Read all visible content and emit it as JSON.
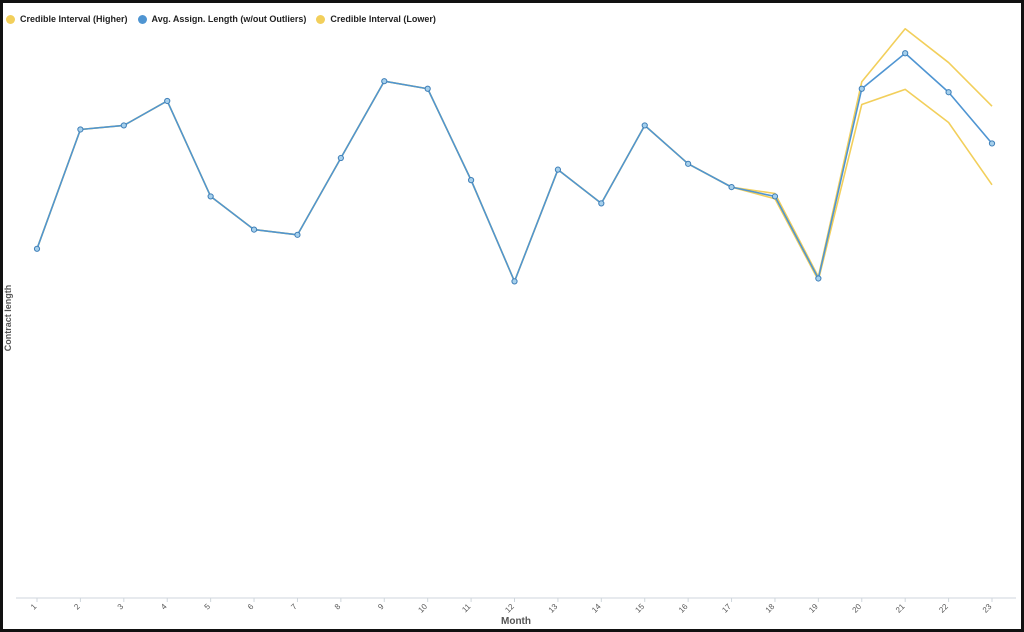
{
  "chart_data": {
    "type": "line",
    "title": "",
    "xlabel": "Month",
    "ylabel": "Contract length",
    "x": [
      "1",
      "2",
      "3",
      "4",
      "5",
      "6",
      "7",
      "8",
      "9",
      "10",
      "11",
      "12",
      "13",
      "14",
      "15",
      "16",
      "17",
      "18",
      "19",
      "20",
      "21",
      "22",
      "23"
    ],
    "ylim": [
      0,
      100
    ],
    "grid": false,
    "legend_position": "top-left",
    "series": [
      {
        "name": "Credible Interval (Higher)",
        "color": "#f2cf5b",
        "values": [
          60,
          80.5,
          81.2,
          85.4,
          69,
          63.3,
          62.4,
          75.6,
          88.8,
          87.5,
          71.8,
          54.4,
          73.6,
          67.8,
          81.2,
          74.6,
          70.6,
          69.5,
          55.2,
          88.7,
          97.8,
          92,
          84.5
        ]
      },
      {
        "name": "Avg. Assign. Length (w/out Outliers)",
        "color": "#4f95d2",
        "values": [
          60,
          80.5,
          81.2,
          85.4,
          69,
          63.3,
          62.4,
          75.6,
          88.8,
          87.5,
          71.8,
          54.4,
          73.6,
          67.8,
          81.2,
          74.6,
          70.6,
          69.0,
          54.9,
          87.5,
          93.6,
          86.9,
          78.1
        ]
      },
      {
        "name": "Credible Interval (Lower)",
        "color": "#f2cf5b",
        "values": [
          60,
          80.5,
          81.2,
          85.4,
          69,
          63.3,
          62.4,
          75.6,
          88.8,
          87.5,
          71.8,
          54.4,
          73.6,
          67.8,
          81.2,
          74.6,
          70.6,
          68.6,
          54.6,
          84.8,
          87.4,
          81.7,
          71.0
        ]
      }
    ]
  }
}
